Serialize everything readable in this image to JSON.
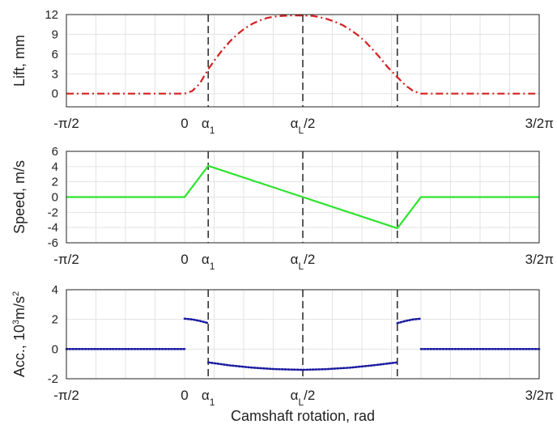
{
  "chart_data": [
    {
      "type": "line",
      "ylabel": "Lift, mm",
      "ylim": [
        -2,
        12
      ],
      "yticks": [
        0,
        3,
        6,
        9,
        12
      ],
      "xlim": [
        -1.5708,
        4.7124
      ],
      "series": [
        {
          "color": "#d42020",
          "style": "dashdot",
          "x": [
            -1.5708,
            0,
            0.1,
            0.2,
            0.314,
            0.4,
            0.5,
            0.6,
            0.7,
            0.8,
            0.9,
            1.0,
            1.1,
            1.2,
            1.3,
            1.4,
            1.571,
            1.7,
            1.8,
            1.9,
            2.0,
            2.1,
            2.2,
            2.3,
            2.4,
            2.5,
            2.6,
            2.7,
            2.827,
            2.94,
            3.04,
            3.142,
            4.7124
          ],
          "y": [
            0,
            0,
            0.4,
            1.5,
            3.7,
            5.1,
            6.6,
            7.9,
            9.0,
            9.9,
            10.6,
            11.1,
            11.5,
            11.7,
            11.8,
            11.85,
            11.85,
            11.8,
            11.6,
            11.3,
            10.9,
            10.4,
            9.7,
            8.9,
            7.9,
            6.7,
            5.4,
            4.0,
            2.5,
            1.2,
            0.4,
            0,
            0
          ]
        }
      ],
      "vlines": [
        0.314,
        1.571,
        2.827
      ]
    },
    {
      "type": "line",
      "ylabel": "Speed, m/s",
      "ylim": [
        -6,
        6
      ],
      "yticks": [
        -6,
        -4,
        -2,
        0,
        2,
        4,
        6
      ],
      "xlim": [
        -1.5708,
        4.7124
      ],
      "series": [
        {
          "color": "#2ee32e",
          "style": "solid",
          "x": [
            -1.5708,
            0,
            0.314,
            1.571,
            2.827,
            3.142,
            4.7124
          ],
          "y": [
            0,
            0,
            4.1,
            0,
            -4.1,
            0,
            0
          ]
        }
      ],
      "vlines": [
        0.314,
        1.571,
        2.827
      ]
    },
    {
      "type": "line",
      "ylabel_parts": [
        "Acc., 10",
        "3",
        "m/s",
        "2"
      ],
      "ylim": [
        -2,
        4
      ],
      "yticks": [
        -2,
        0,
        2,
        4
      ],
      "xlim": [
        -1.5708,
        4.7124
      ],
      "xlabel": "Camshaft rotation, rad",
      "series": [
        {
          "color": "#1a1aa0",
          "style": "dotted",
          "segments": [
            {
              "x": [
                -1.5708,
                0
              ],
              "y": [
                0,
                0
              ]
            },
            {
              "x": [
                0,
                0.1,
                0.2,
                0.314
              ],
              "y": [
                2.05,
                2.0,
                1.9,
                1.75
              ]
            },
            {
              "x": [
                0.314,
                0.6,
                0.9,
                1.2,
                1.571,
                1.9,
                2.2,
                2.5,
                2.827
              ],
              "y": [
                -0.9,
                -1.1,
                -1.25,
                -1.35,
                -1.4,
                -1.35,
                -1.25,
                -1.1,
                -0.9
              ]
            },
            {
              "x": [
                2.827,
                2.94,
                3.04,
                3.142
              ],
              "y": [
                1.75,
                1.9,
                2.0,
                2.05
              ]
            },
            {
              "x": [
                3.142,
                4.7124
              ],
              "y": [
                0,
                0
              ]
            }
          ]
        }
      ],
      "vlines": [
        0.314,
        1.571,
        2.827
      ]
    }
  ],
  "xtick_values": [
    -1.5708,
    0,
    0.314,
    1.571,
    4.7124
  ],
  "xtick_labels": [
    {
      "main": "-π/2",
      "sub": ""
    },
    {
      "main": "0",
      "sub": ""
    },
    {
      "main": "α",
      "sub": "1",
      "after": ""
    },
    {
      "main": "α",
      "sub": "L",
      "after": "/2"
    },
    {
      "main": "3/2π",
      "sub": ""
    }
  ],
  "xlabel": "Camshaft rotation, rad"
}
